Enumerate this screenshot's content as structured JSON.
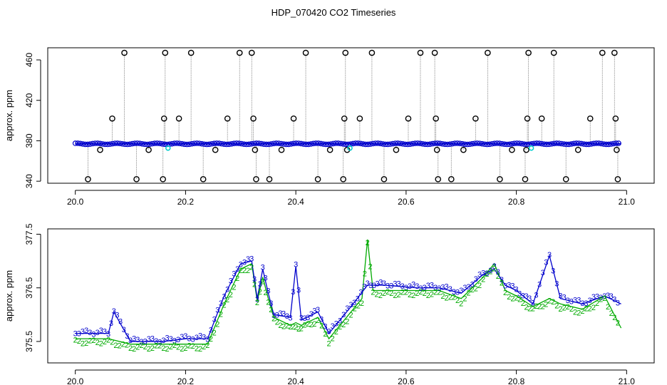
{
  "title": "HDP_070420  CO2 Timeseries",
  "chart_data": [
    {
      "type": "scatter",
      "ylabel": "approx. ppm",
      "xlim": [
        19.95,
        21.05
      ],
      "ylim": [
        338,
        472
      ],
      "xticks": [
        "20.0",
        "20.2",
        "20.4",
        "20.6",
        "20.8",
        "21.0"
      ],
      "yticks": [
        "340",
        "380",
        "420",
        "460"
      ],
      "grid": false,
      "baseline": 377,
      "spikes": [
        {
          "x": 0.023,
          "y": 342
        },
        {
          "x": 0.045,
          "y": 371
        },
        {
          "x": 0.067,
          "y": 402
        },
        {
          "x": 0.089,
          "y": 467
        },
        {
          "x": 0.111,
          "y": 342
        },
        {
          "x": 0.133,
          "y": 371
        },
        {
          "x": 0.159,
          "y": 342
        },
        {
          "x": 0.161,
          "y": 402
        },
        {
          "x": 0.163,
          "y": 467
        },
        {
          "x": 0.188,
          "y": 402
        },
        {
          "x": 0.21,
          "y": 467
        },
        {
          "x": 0.232,
          "y": 342
        },
        {
          "x": 0.254,
          "y": 371
        },
        {
          "x": 0.276,
          "y": 402
        },
        {
          "x": 0.298,
          "y": 467
        },
        {
          "x": 0.32,
          "y": 467
        },
        {
          "x": 0.323,
          "y": 402
        },
        {
          "x": 0.326,
          "y": 371
        },
        {
          "x": 0.328,
          "y": 342
        },
        {
          "x": 0.352,
          "y": 342
        },
        {
          "x": 0.374,
          "y": 371
        },
        {
          "x": 0.396,
          "y": 402
        },
        {
          "x": 0.418,
          "y": 467
        },
        {
          "x": 0.44,
          "y": 342
        },
        {
          "x": 0.462,
          "y": 371
        },
        {
          "x": 0.486,
          "y": 342
        },
        {
          "x": 0.488,
          "y": 402
        },
        {
          "x": 0.49,
          "y": 467
        },
        {
          "x": 0.493,
          "y": 371
        },
        {
          "x": 0.516,
          "y": 402
        },
        {
          "x": 0.538,
          "y": 467
        },
        {
          "x": 0.56,
          "y": 342
        },
        {
          "x": 0.582,
          "y": 371
        },
        {
          "x": 0.604,
          "y": 402
        },
        {
          "x": 0.626,
          "y": 467
        },
        {
          "x": 0.652,
          "y": 467
        },
        {
          "x": 0.654,
          "y": 402
        },
        {
          "x": 0.656,
          "y": 371
        },
        {
          "x": 0.658,
          "y": 342
        },
        {
          "x": 0.682,
          "y": 342
        },
        {
          "x": 0.704,
          "y": 371
        },
        {
          "x": 0.726,
          "y": 402
        },
        {
          "x": 0.748,
          "y": 467
        },
        {
          "x": 0.77,
          "y": 342
        },
        {
          "x": 0.792,
          "y": 371
        },
        {
          "x": 0.816,
          "y": 342
        },
        {
          "x": 0.818,
          "y": 371
        },
        {
          "x": 0.82,
          "y": 402
        },
        {
          "x": 0.822,
          "y": 467
        },
        {
          "x": 0.846,
          "y": 402
        },
        {
          "x": 0.868,
          "y": 467
        },
        {
          "x": 0.89,
          "y": 342
        },
        {
          "x": 0.912,
          "y": 371
        },
        {
          "x": 0.934,
          "y": 402
        },
        {
          "x": 0.956,
          "y": 467
        },
        {
          "x": 0.978,
          "y": 467
        },
        {
          "x": 0.98,
          "y": 402
        },
        {
          "x": 0.982,
          "y": 371
        },
        {
          "x": 0.984,
          "y": 342
        }
      ],
      "colors": {
        "spike_line": "#888888",
        "circle": "#000000",
        "series3": "#0000cc",
        "series2": "#00aa00",
        "cyan": "#00cccc"
      }
    },
    {
      "type": "line",
      "ylabel": "approx. ppm",
      "xlim": [
        19.95,
        21.05
      ],
      "ylim": [
        375.1,
        377.6
      ],
      "xticks": [
        "20.0",
        "20.2",
        "20.4",
        "20.6",
        "20.8",
        "21.0"
      ],
      "yticks": [
        "375.5",
        "376.5",
        "377.5"
      ],
      "grid": false,
      "series": [
        {
          "marker": "3",
          "color": "#0000cc",
          "x": [
            20.0,
            20.06,
            20.07,
            20.1,
            20.16,
            20.2,
            20.24,
            20.27,
            20.3,
            20.32,
            20.33,
            20.34,
            20.35,
            20.36,
            20.39,
            20.4,
            20.41,
            20.44,
            20.46,
            20.5,
            20.53,
            20.56,
            20.62,
            20.66,
            20.7,
            20.74,
            20.76,
            20.78,
            20.8,
            20.83,
            20.86,
            20.88,
            20.92,
            20.96,
            20.99
          ],
          "y": [
            375.65,
            375.65,
            376.05,
            375.5,
            375.5,
            375.55,
            375.55,
            376.35,
            376.95,
            377.0,
            376.3,
            376.85,
            376.4,
            376.0,
            375.95,
            376.9,
            375.9,
            376.05,
            375.65,
            376.15,
            376.55,
            376.55,
            376.5,
            376.5,
            376.4,
            376.75,
            376.85,
            376.55,
            376.45,
            376.2,
            377.1,
            376.3,
            376.2,
            376.35,
            376.2
          ]
        },
        {
          "marker": "2",
          "color": "#00aa00",
          "x": [
            20.0,
            20.06,
            20.1,
            20.16,
            20.2,
            20.24,
            20.27,
            20.3,
            20.32,
            20.33,
            20.34,
            20.35,
            20.36,
            20.39,
            20.4,
            20.41,
            20.44,
            20.46,
            20.5,
            20.52,
            20.53,
            20.54,
            20.56,
            20.62,
            20.66,
            20.7,
            20.74,
            20.76,
            20.78,
            20.8,
            20.83,
            20.86,
            20.88,
            20.92,
            20.96,
            20.99
          ],
          "y": [
            375.55,
            375.55,
            375.45,
            375.45,
            375.45,
            375.45,
            376.2,
            376.85,
            376.95,
            376.25,
            376.7,
            376.3,
            375.95,
            375.8,
            375.85,
            375.8,
            375.95,
            375.55,
            376.05,
            376.3,
            377.4,
            376.45,
            376.45,
            376.45,
            376.45,
            376.3,
            376.7,
            376.95,
            376.45,
            376.35,
            376.15,
            376.3,
            376.2,
            376.1,
            376.35,
            375.75
          ]
        }
      ]
    }
  ]
}
